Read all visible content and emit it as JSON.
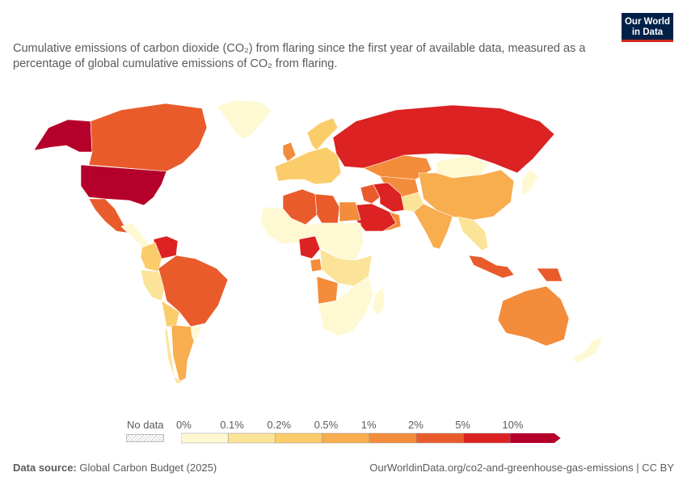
{
  "header": {
    "subtitle": "Cumulative emissions of carbon dioxide (CO₂) from flaring since the first year of available data, measured as a percentage of global cumulative emissions of CO₂ from flaring.",
    "logo_line1": "Our World",
    "logo_line2": "in Data"
  },
  "legend": {
    "no_data_label": "No data",
    "bins": [
      {
        "label": "0%",
        "color": "#fef9d3"
      },
      {
        "label": "0.1%",
        "color": "#fbe398"
      },
      {
        "label": "0.2%",
        "color": "#fbcc6a"
      },
      {
        "label": "0.5%",
        "color": "#f8ad4f"
      },
      {
        "label": "1%",
        "color": "#f38c3b"
      },
      {
        "label": "2%",
        "color": "#ea5b2c"
      },
      {
        "label": "5%",
        "color": "#dc2222"
      },
      {
        "label": "10%",
        "color": "#b5002b"
      }
    ]
  },
  "map_regions": [
    {
      "name": "United States",
      "color": "#b5002b"
    },
    {
      "name": "Alaska",
      "color": "#b5002b"
    },
    {
      "name": "Canada",
      "color": "#ea5b2c"
    },
    {
      "name": "Greenland",
      "color": "#fef9d3"
    },
    {
      "name": "Mexico",
      "color": "#ea5b2c"
    },
    {
      "name": "Central America",
      "color": "#fef9d3"
    },
    {
      "name": "Venezuela",
      "color": "#dc2222"
    },
    {
      "name": "Colombia",
      "color": "#fbcc6a"
    },
    {
      "name": "Peru",
      "color": "#fbe398"
    },
    {
      "name": "Brazil",
      "color": "#ea5b2c"
    },
    {
      "name": "Bolivia",
      "color": "#fbcc6a"
    },
    {
      "name": "Argentina",
      "color": "#f8ad4f"
    },
    {
      "name": "Chile",
      "color": "#fbe398"
    },
    {
      "name": "Uruguay",
      "color": "#fef9d3"
    },
    {
      "name": "Europe",
      "color": "#fbcc6a"
    },
    {
      "name": "United Kingdom",
      "color": "#f38c3b"
    },
    {
      "name": "Norway",
      "color": "#fbcc6a"
    },
    {
      "name": "Russia",
      "color": "#dc2222"
    },
    {
      "name": "Kazakhstan",
      "color": "#f38c3b"
    },
    {
      "name": "Central Asia",
      "color": "#f38c3b"
    },
    {
      "name": "Mongolia",
      "color": "#fef9d3"
    },
    {
      "name": "China",
      "color": "#f8ad4f"
    },
    {
      "name": "India",
      "color": "#f8ad4f"
    },
    {
      "name": "Pakistan",
      "color": "#fbe398"
    },
    {
      "name": "Iran",
      "color": "#dc2222"
    },
    {
      "name": "Iraq",
      "color": "#ea5b2c"
    },
    {
      "name": "Saudi Arabia",
      "color": "#dc2222"
    },
    {
      "name": "Oman",
      "color": "#f38c3b"
    },
    {
      "name": "Algeria",
      "color": "#ea5b2c"
    },
    {
      "name": "Libya",
      "color": "#ea5b2c"
    },
    {
      "name": "Egypt",
      "color": "#f38c3b"
    },
    {
      "name": "Sahara Africa",
      "color": "#fef9d3"
    },
    {
      "name": "Nigeria",
      "color": "#dc2222"
    },
    {
      "name": "Gabon",
      "color": "#f38c3b"
    },
    {
      "name": "Central Africa",
      "color": "#fbe398"
    },
    {
      "name": "Angola",
      "color": "#f38c3b"
    },
    {
      "name": "Southern Africa",
      "color": "#fef9d3"
    },
    {
      "name": "Southeast Asia",
      "color": "#fbe398"
    },
    {
      "name": "Indonesia",
      "color": "#ea5b2c"
    },
    {
      "name": "Papua New Guinea",
      "color": "#ea5b2c"
    },
    {
      "name": "Australia",
      "color": "#f38c3b"
    },
    {
      "name": "New Zealand",
      "color": "#fef9d3"
    },
    {
      "name": "Japan",
      "color": "#fef9d3"
    },
    {
      "name": "Madagascar",
      "color": "#fef9d3"
    }
  ],
  "footer": {
    "source_label": "Data source:",
    "source_value": "Global Carbon Budget (2025)",
    "url": "OurWorldinData.org/co2-and-greenhouse-gas-emissions | CC BY"
  }
}
